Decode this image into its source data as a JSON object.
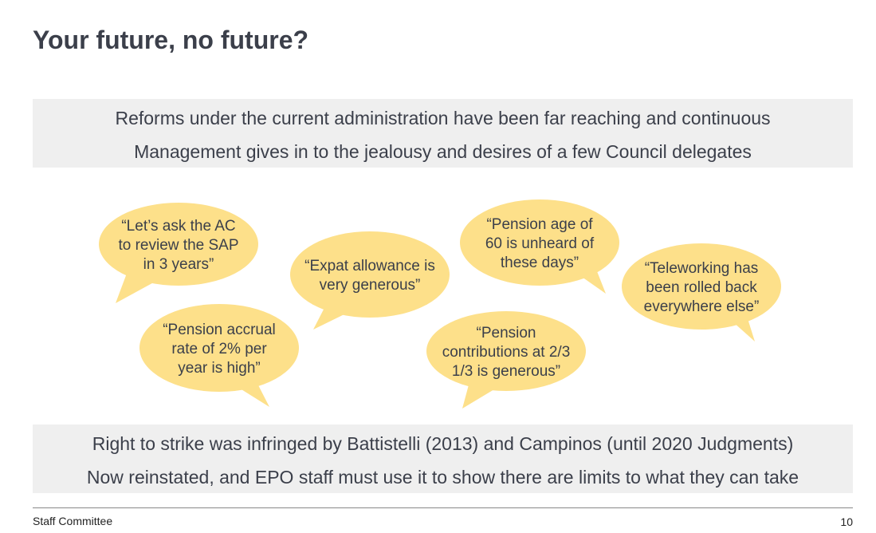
{
  "title": "Your future, no future?",
  "top_box": [
    "Reforms under the current administration have been far reaching and continuous",
    "Management gives in to the jealousy and desires of a few Council delegates"
  ],
  "bubbles": [
    [
      "“Let’s ask the AC",
      "to review the SAP",
      "in 3 years”"
    ],
    [
      "“Pension accrual",
      "rate of 2% per",
      "year is high”"
    ],
    [
      "“Expat allowance is",
      "very generous”"
    ],
    [
      "“Pension age of",
      "60 is unheard of",
      "these days”"
    ],
    [
      "“Pension",
      "contributions at 2/3",
      "1/3 is generous”"
    ],
    [
      "“Teleworking has",
      "been rolled back",
      "everywhere else”"
    ]
  ],
  "bottom_box": [
    "Right to strike was infringed by Battistelli (2013) and Campinos (until 2020 Judgments)",
    "Now reinstated, and EPO staff must use it to show there are limits to what they can take"
  ],
  "footer": {
    "left": "Staff Committee",
    "page": "10"
  }
}
